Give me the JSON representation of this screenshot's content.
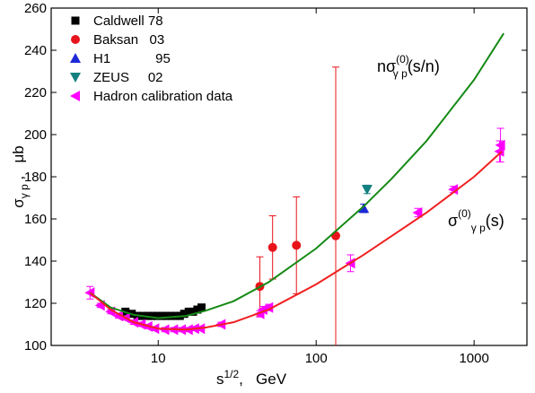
{
  "chart_data": {
    "type": "scatter",
    "xlog": true,
    "xlim": [
      2.1,
      2160
    ],
    "ylim": [
      100,
      260
    ],
    "xticks": [
      10,
      100,
      1000
    ],
    "yticks": [
      100,
      120,
      140,
      160,
      180,
      200,
      220,
      240,
      260
    ],
    "x_label": {
      "main": "s",
      "sup": "1/2",
      "tail": ",   GeV"
    },
    "y_label": {
      "main": "σ",
      "sub": "γ p",
      "tail": " ,   μb"
    },
    "legend": "top-left",
    "annotations": [
      {
        "main": "nσ",
        "sup": "(0)",
        "sub": "γ p",
        "tail": "(s/n)"
      },
      {
        "main": "σ",
        "sup": "(0)",
        "sub": "γ p",
        "tail": "(s)"
      }
    ],
    "series": [
      {
        "name": "Caldwell 78",
        "kind": "scatter",
        "marker": "square",
        "color": "#000000",
        "x": [
          6.2,
          6.8,
          7.4,
          8.0,
          8.6,
          9.2,
          9.8,
          10.5,
          11.2,
          12.0,
          12.8,
          13.7,
          14.6,
          15.6,
          16.6,
          17.7,
          18.8
        ],
        "values": [
          116,
          115,
          114,
          114,
          114,
          114,
          114,
          114,
          114,
          114,
          114,
          114,
          115,
          116,
          116,
          117,
          118
        ]
      },
      {
        "name": "Baksan   03",
        "kind": "scatter",
        "marker": "circle",
        "color": "#e8141b",
        "x": [
          44,
          53,
          75,
          133
        ],
        "values": [
          128,
          146.5,
          147.5,
          152
        ],
        "errors": [
          14,
          15,
          23,
          80
        ]
      },
      {
        "name": "H1            95",
        "kind": "scatter",
        "marker": "triangle-up",
        "color": "#1e2ad6",
        "x": [
          200
        ],
        "values": [
          165
        ],
        "errors": [
          2
        ]
      },
      {
        "name": "ZEUS     02",
        "kind": "scatter",
        "marker": "triangle-down",
        "color": "#138080",
        "x": [
          210
        ],
        "values": [
          174
        ],
        "errors": [
          2
        ]
      },
      {
        "name": "Hadron calibration data",
        "kind": "scatter",
        "marker": "triangle-left",
        "color": "#ff00ff",
        "x": [
          3.7,
          4.3,
          5.0,
          5.6,
          6.2,
          7.0,
          7.8,
          8.6,
          9.5,
          11,
          12.5,
          14,
          15.5,
          17,
          18.5,
          25,
          44,
          46,
          50,
          165,
          440,
          740,
          1450,
          1470
        ],
        "values": [
          125,
          119,
          116,
          114,
          113,
          111,
          110,
          109,
          108,
          107.5,
          107.5,
          107.5,
          107.5,
          108,
          108,
          110,
          115,
          117,
          118,
          139,
          163,
          174,
          192,
          195
        ],
        "errors": [
          3,
          1,
          1,
          1,
          1,
          1,
          1,
          1,
          1,
          1,
          1,
          1,
          1,
          1,
          1,
          1,
          1.5,
          1.5,
          1.5,
          4,
          2,
          1.5,
          5,
          8
        ]
      },
      {
        "kind": "line",
        "color": "#168a16",
        "x": [
          3.7,
          5,
          7,
          10,
          15,
          20,
          30,
          50,
          100,
          200,
          300,
          500,
          1000,
          1540
        ],
        "values": [
          125,
          118,
          114.5,
          113,
          114,
          116.5,
          121,
          130,
          146,
          166,
          179,
          197,
          226,
          248
        ]
      },
      {
        "kind": "line",
        "color": "#f02020",
        "x": [
          3.7,
          5,
          7,
          10,
          15,
          20,
          30,
          50,
          100,
          200,
          500,
          1000,
          1500
        ],
        "values": [
          125,
          117,
          111,
          108,
          107.5,
          108.5,
          111,
          117,
          129,
          143,
          163,
          180,
          192
        ]
      }
    ]
  }
}
